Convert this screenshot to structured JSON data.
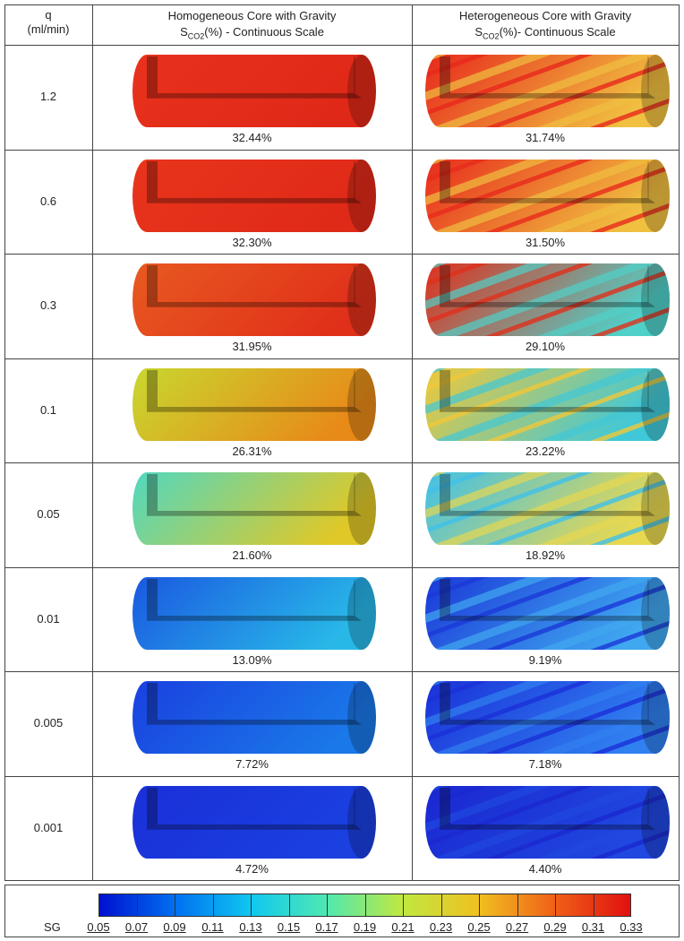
{
  "header": {
    "q": {
      "line1": "q",
      "line2": "(ml/min)"
    },
    "columns": [
      {
        "title": "Homogeneous Core with Gravity",
        "symbol": "S",
        "subscript": "CO2",
        "suffix": "(%) - Continuous Scale"
      },
      {
        "title": "Heterogeneous Core with Gravity",
        "symbol": "S",
        "subscript": "CO2",
        "suffix": "(%)- Continuous Scale"
      }
    ]
  },
  "table": {
    "rows": [
      {
        "q": "1.2",
        "cells": [
          {
            "label": "32.44%",
            "colors": [
              "#e8321c",
              "#e02818"
            ]
          },
          {
            "label": "31.74%",
            "colors": [
              "#e8281c",
              "#f0c040"
            ]
          }
        ]
      },
      {
        "q": "0.6",
        "cells": [
          {
            "label": "32.30%",
            "colors": [
              "#e8341c",
              "#e02a18"
            ]
          },
          {
            "label": "31.50%",
            "colors": [
              "#e82a1c",
              "#f0c040"
            ]
          }
        ]
      },
      {
        "q": "0.3",
        "cells": [
          {
            "label": "31.95%",
            "colors": [
              "#e85a20",
              "#e0301a"
            ]
          },
          {
            "label": "29.10%",
            "colors": [
              "#e0301c",
              "#50d0c8"
            ]
          }
        ]
      },
      {
        "q": "0.1",
        "cells": [
          {
            "label": "26.31%",
            "colors": [
              "#c8d830",
              "#e88a18"
            ]
          },
          {
            "label": "23.22%",
            "colors": [
              "#f0c838",
              "#40c8d8"
            ]
          }
        ]
      },
      {
        "q": "0.05",
        "cells": [
          {
            "label": "21.60%",
            "colors": [
              "#50d8c0",
              "#e0c828"
            ]
          },
          {
            "label": "18.92%",
            "colors": [
              "#40c0e8",
              "#e8d850"
            ]
          }
        ]
      },
      {
        "q": "0.01",
        "cells": [
          {
            "label": "13.09%",
            "colors": [
              "#1a58e0",
              "#28b8e8"
            ]
          },
          {
            "label": "9.19%",
            "colors": [
              "#1a38d8",
              "#40a8f0"
            ]
          }
        ]
      },
      {
        "q": "0.005",
        "cells": [
          {
            "label": "7.72%",
            "colors": [
              "#1a40e0",
              "#1a78e8"
            ]
          },
          {
            "label": "7.18%",
            "colors": [
              "#1a30d8",
              "#3080f0"
            ]
          }
        ]
      },
      {
        "q": "0.001",
        "cells": [
          {
            "label": "4.72%",
            "colors": [
              "#1a30d8",
              "#1a40e0"
            ]
          },
          {
            "label": "4.40%",
            "colors": [
              "#1a28d0",
              "#2048e0"
            ]
          }
        ]
      }
    ]
  },
  "colorbar": {
    "label": "SG",
    "ticks": [
      0.05,
      0.07,
      0.09,
      0.11,
      0.13,
      0.15,
      0.17,
      0.19,
      0.21,
      0.23,
      0.25,
      0.27,
      0.29,
      0.31,
      0.33
    ]
  }
}
